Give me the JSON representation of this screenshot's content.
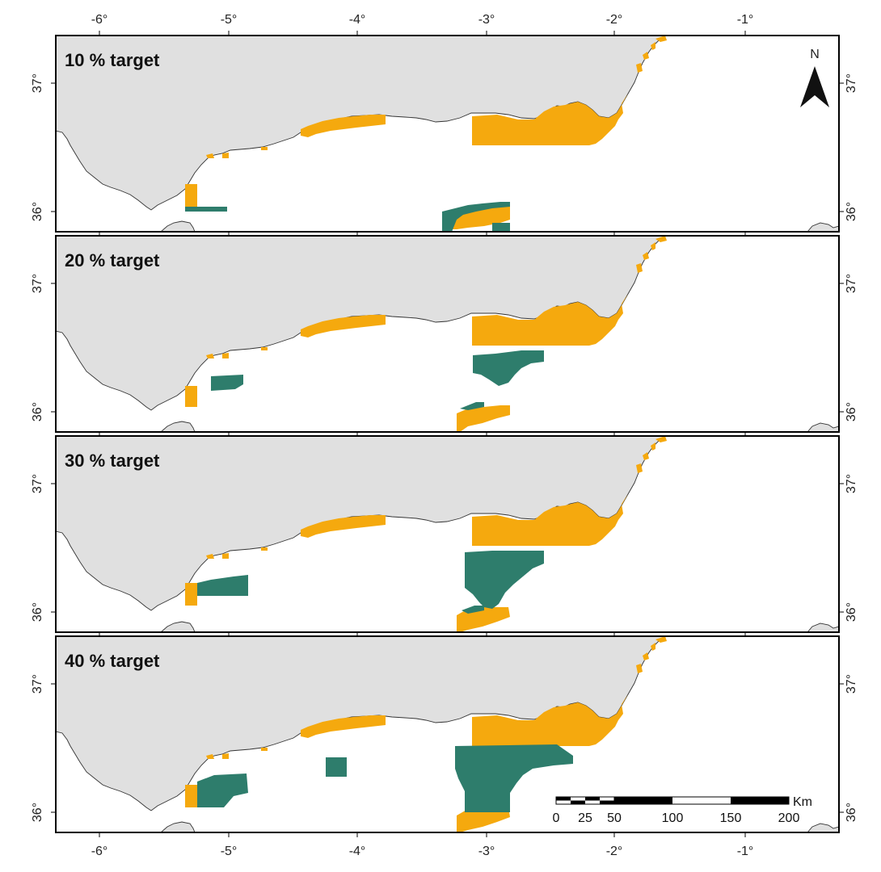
{
  "figure": {
    "x_ticks": [
      "-6°",
      "-5°",
      "-4°",
      "-3°",
      "-2°",
      "-1°"
    ],
    "y_ticks": [
      "37°",
      "36°"
    ],
    "colors": {
      "land": "#e0e0e0",
      "coast": "#333333",
      "existing": "#f5a90e",
      "new": "#2e7d6c",
      "frame": "#000000"
    }
  },
  "panels": [
    {
      "title": "10 % target",
      "target_percent": 10
    },
    {
      "title": "20 % target",
      "target_percent": 20
    },
    {
      "title": "30 % target",
      "target_percent": 30
    },
    {
      "title": "40 % target",
      "target_percent": 40
    }
  ],
  "north_arrow": {
    "label": "N",
    "icon": "north-arrow-icon"
  },
  "scale_bar": {
    "unit": "Km",
    "labels": [
      "0",
      "25",
      "50",
      "100",
      "150",
      "200"
    ]
  }
}
